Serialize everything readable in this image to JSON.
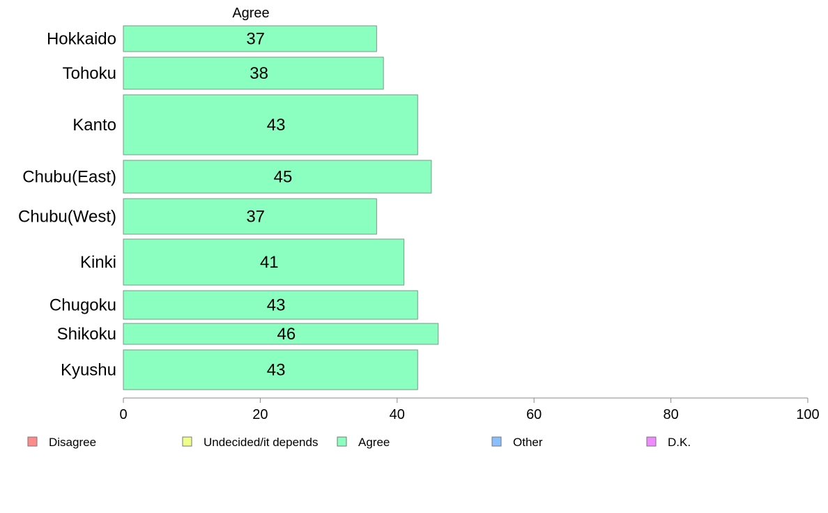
{
  "chart_data": {
    "type": "bar",
    "orientation": "horizontal",
    "title": "Agree",
    "categories": [
      "Hokkaido",
      "Tohoku",
      "Kanto",
      "Chubu(East)",
      "Chubu(West)",
      "Kinki",
      "Chugoku",
      "Shikoku",
      "Kyushu"
    ],
    "series": [
      {
        "name": "Agree",
        "values": [
          37,
          38,
          43,
          45,
          37,
          41,
          43,
          46,
          43
        ],
        "color": "#8AFFBF"
      }
    ],
    "xlabel": "",
    "ylabel": "",
    "xlim": [
      0,
      100
    ],
    "xticks": [
      0,
      20,
      40,
      60,
      80,
      100
    ],
    "grid": false,
    "legend": {
      "placement": "bottom",
      "items": [
        {
          "label": "Disagree",
          "color": "#FF8A8A"
        },
        {
          "label": "Undecided/it depends",
          "color": "#EFFF8A"
        },
        {
          "label": "Agree",
          "color": "#8AFFBF"
        },
        {
          "label": "Other",
          "color": "#8ABFFF"
        },
        {
          "label": "D.K.",
          "color": "#EF8AFF"
        }
      ]
    }
  }
}
